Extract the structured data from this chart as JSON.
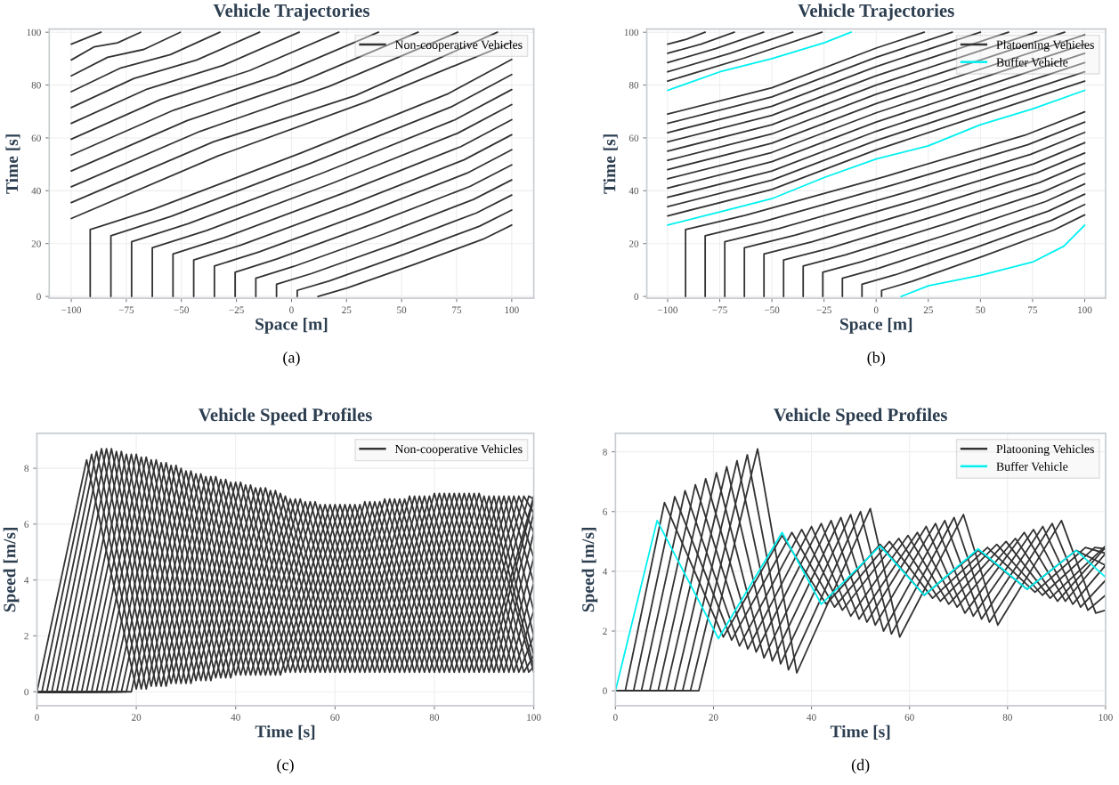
{
  "chart_data": [
    {
      "type": "line",
      "title": "Vehicle Trajectories",
      "xlabel": "Space [m]",
      "ylabel": "Time [s]",
      "xlim": [
        -110,
        110
      ],
      "ylim": [
        -0.7,
        101.2
      ],
      "xticks": [
        {
          "value": -100,
          "label": "−100"
        },
        {
          "value": -75,
          "label": "−75"
        },
        {
          "value": -50,
          "label": "−50"
        },
        {
          "value": -25,
          "label": "−25"
        },
        0,
        25,
        50,
        75,
        100
      ],
      "yticks": [
        0,
        20,
        40,
        60,
        80,
        100
      ],
      "grid": true,
      "legend": "top right",
      "annotations": [
        "(a)"
      ],
      "series": [
        {
          "name": "Non-cooperative Vehicles",
          "color": "#333333",
          "x": [
            12,
            25.2,
            56,
            86.8,
            100
          ],
          "values": [
            0,
            3.2,
            12.2,
            21.6,
            27
          ]
        },
        {
          "color": "#333333",
          "x": [
            2.6,
            2.6,
            17.2,
            51.3,
            85.4,
            100
          ],
          "values": [
            0,
            2.3,
            5.9,
            16,
            26.6,
            32.7
          ]
        },
        {
          "color": "#333333",
          "x": [
            -6.8,
            -6.8,
            9.2,
            46.6,
            84,
            100
          ],
          "values": [
            0,
            4.6,
            8.7,
            19.8,
            31.6,
            38.4
          ]
        },
        {
          "color": "#333333",
          "x": [
            -16.2,
            -16.2,
            1.2,
            41.9,
            82.6,
            100
          ],
          "values": [
            0,
            6.9,
            11.4,
            23.6,
            36.7,
            44.1
          ]
        },
        {
          "color": "#333333",
          "x": [
            -25.6,
            -25.6,
            -6.8,
            37.2,
            81.2,
            100
          ],
          "values": [
            0,
            9.2,
            14.1,
            27.5,
            41.7,
            49.8
          ]
        },
        {
          "color": "#333333",
          "x": [
            -35,
            -35,
            -14.8,
            32.5,
            79.8,
            100
          ],
          "values": [
            0,
            11.5,
            16.8,
            31.3,
            46.7,
            55.5
          ]
        },
        {
          "color": "#333333",
          "x": [
            -44.4,
            -44.4,
            -22.7,
            27.8,
            78.3,
            100
          ],
          "values": [
            0,
            13.8,
            19.5,
            35.1,
            51.7,
            61.2
          ]
        },
        {
          "color": "#333333",
          "x": [
            -53.8,
            -53.8,
            -30.7,
            23.1,
            76.9,
            100
          ],
          "values": [
            0,
            16.1,
            22.2,
            39,
            56.7,
            66.9
          ]
        },
        {
          "color": "#333333",
          "x": [
            -63.2,
            -63.2,
            -38.7,
            18.4,
            75.5,
            100
          ],
          "values": [
            0,
            18.4,
            24.9,
            42.8,
            61.8,
            72.6
          ]
        },
        {
          "color": "#333333",
          "x": [
            -72.6,
            -72.6,
            -46.7,
            13.7,
            74.1,
            100
          ],
          "values": [
            0,
            20.7,
            27.6,
            46.6,
            66.8,
            78.3
          ]
        },
        {
          "color": "#333333",
          "x": [
            -82,
            -82,
            -54.7,
            9,
            72.7,
            100
          ],
          "values": [
            0,
            23,
            30.3,
            50.5,
            71.8,
            84
          ]
        },
        {
          "color": "#333333",
          "x": [
            -91.4,
            -91.4,
            -62.7,
            4.3,
            71.3,
            100
          ],
          "values": [
            0,
            25.3,
            33,
            54.3,
            76.8,
            89.7
          ]
        },
        {
          "color": "#333333",
          "x": [
            -100,
            -33.3,
            33.3,
            100
          ],
          "values": [
            29.5,
            53.2,
            73.4,
            96.2
          ]
        },
        {
          "color": "#333333",
          "x": [
            -100,
            -35.5,
            29,
            93.5
          ],
          "values": [
            35.5,
            58.5,
            76,
            100
          ]
        },
        {
          "color": "#333333",
          "x": [
            -100,
            -41.5,
            17,
            75.5
          ],
          "values": [
            41.5,
            62.5,
            79.5,
            100
          ]
        },
        {
          "color": "#333333",
          "x": [
            -100,
            -47.5,
            5,
            57.5
          ],
          "values": [
            47.5,
            66.5,
            81.5,
            100
          ]
        },
        {
          "color": "#333333",
          "x": [
            -100,
            -53.5,
            -7,
            39.5
          ],
          "values": [
            53.5,
            70.5,
            83.5,
            100
          ]
        },
        {
          "color": "#333333",
          "x": [
            -100,
            -59.5,
            -19,
            21.5
          ],
          "values": [
            59.5,
            74.5,
            85.5,
            100
          ]
        },
        {
          "color": "#333333",
          "x": [
            -100,
            -65.5,
            -31,
            3.5
          ],
          "values": [
            65.5,
            78.5,
            87.5,
            100
          ]
        },
        {
          "color": "#333333",
          "x": [
            -100,
            -71.5,
            -43,
            -14.5
          ],
          "values": [
            71.5,
            82.5,
            89.5,
            100
          ]
        },
        {
          "color": "#333333",
          "x": [
            -100,
            -77.5,
            -55,
            -32.5
          ],
          "values": [
            77.5,
            86.5,
            91.5,
            100
          ]
        },
        {
          "color": "#333333",
          "x": [
            -100,
            -83.5,
            -67,
            -50.5
          ],
          "values": [
            83.5,
            90.5,
            93.5,
            100
          ]
        },
        {
          "color": "#333333",
          "x": [
            -100,
            -89.5,
            -79,
            -68.5
          ],
          "values": [
            89.5,
            94.5,
            96,
            100
          ]
        },
        {
          "color": "#333333",
          "x": [
            -100,
            -86.5
          ],
          "values": [
            95.5,
            100
          ]
        }
      ]
    },
    {
      "type": "line",
      "title": "Vehicle Trajectories",
      "xlabel": "Space [m]",
      "ylabel": "Time [s]",
      "xlim": [
        -110,
        110
      ],
      "ylim": [
        -0.7,
        101.2
      ],
      "xticks": [
        {
          "value": -100,
          "label": "−100"
        },
        {
          "value": -75,
          "label": "−75"
        },
        {
          "value": -50,
          "label": "−50"
        },
        {
          "value": -25,
          "label": "−25"
        },
        0,
        25,
        50,
        75,
        100
      ],
      "yticks": [
        0,
        20,
        40,
        60,
        80,
        100
      ],
      "grid": true,
      "legend": "top right",
      "annotations": [
        "(b)"
      ],
      "series": [
        {
          "name": "Platooning Vehicles",
          "color": "#333333",
          "x": [
            2.6,
            2.6,
            17.2,
            51.3,
            85.4,
            100
          ],
          "values": [
            0,
            2.3,
            5.7,
            15.2,
            25.2,
            30.9
          ]
        },
        {
          "color": "#333333",
          "x": [
            -6.8,
            -6.8,
            9.2,
            46.6,
            84,
            100
          ],
          "values": [
            0,
            4.6,
            8.2,
            18.2,
            28.8,
            34.8
          ]
        },
        {
          "color": "#333333",
          "x": [
            -16.2,
            -16.2,
            1.2,
            41.9,
            82.6,
            100
          ],
          "values": [
            0,
            6.9,
            10.7,
            21.2,
            32.3,
            38.7
          ]
        },
        {
          "color": "#333333",
          "x": [
            -25.6,
            -25.6,
            -6.8,
            37.2,
            81.2,
            100
          ],
          "values": [
            0,
            9.2,
            13.2,
            24.2,
            35.9,
            42.6
          ]
        },
        {
          "color": "#333333",
          "x": [
            -35,
            -35,
            -14.8,
            32.5,
            79.8,
            100
          ],
          "values": [
            0,
            11.5,
            15.7,
            27.3,
            39.5,
            46.5
          ]
        },
        {
          "color": "#333333",
          "x": [
            -44.4,
            -44.4,
            -22.7,
            27.8,
            78.3,
            100
          ],
          "values": [
            0,
            13.8,
            18.2,
            30.3,
            43.1,
            50.4
          ]
        },
        {
          "color": "#333333",
          "x": [
            -53.8,
            -53.8,
            -30.7,
            23.1,
            76.9,
            100
          ],
          "values": [
            0,
            16.1,
            20.7,
            33.3,
            46.7,
            54.3
          ]
        },
        {
          "color": "#333333",
          "x": [
            -63.2,
            -63.2,
            -38.7,
            18.4,
            75.5,
            100
          ],
          "values": [
            0,
            18.4,
            23.2,
            36.3,
            50.2,
            58.2
          ]
        },
        {
          "color": "#333333",
          "x": [
            -72.6,
            -72.6,
            -46.7,
            13.7,
            74.1,
            100
          ],
          "values": [
            0,
            20.7,
            25.7,
            39.3,
            53.8,
            62.1
          ]
        },
        {
          "color": "#333333",
          "x": [
            -82,
            -82,
            -54.7,
            9,
            72.7,
            100
          ],
          "values": [
            0,
            23,
            28.2,
            42.4,
            57.4,
            66
          ]
        },
        {
          "color": "#333333",
          "x": [
            -91.4,
            -91.4,
            -62.7,
            4.3,
            71.3,
            100
          ],
          "values": [
            0,
            25.3,
            30.7,
            45.4,
            61,
            69.9
          ]
        },
        {
          "color": "#333333",
          "x": [
            -100,
            -50,
            0,
            50,
            100
          ],
          "values": [
            30.5,
            40.5,
            55.5,
            68.5,
            81.5
          ]
        },
        {
          "color": "#333333",
          "x": [
            -100,
            -50,
            0,
            50,
            100
          ],
          "values": [
            34,
            44,
            59,
            72,
            85
          ]
        },
        {
          "color": "#333333",
          "x": [
            -100,
            -50,
            0,
            50,
            100
          ],
          "values": [
            37.5,
            47.5,
            62.5,
            75.5,
            88.5
          ]
        },
        {
          "color": "#333333",
          "x": [
            -100,
            -50,
            0,
            50,
            100
          ],
          "values": [
            41,
            51,
            66,
            79,
            92
          ]
        },
        {
          "color": "#333333",
          "x": [
            -100,
            -50,
            0,
            50,
            100
          ],
          "values": [
            44.5,
            54.5,
            69.5,
            82.5,
            95.5
          ]
        },
        {
          "color": "#333333",
          "x": [
            -100,
            -50,
            0,
            50,
            100
          ],
          "values": [
            48,
            58,
            73,
            86,
            99
          ]
        },
        {
          "color": "#333333",
          "x": [
            -100,
            -50,
            0,
            50,
            90.4
          ],
          "values": [
            51.5,
            61.5,
            76.5,
            89.5,
            100
          ]
        },
        {
          "color": "#333333",
          "x": [
            -100,
            -50,
            0,
            50,
            76.9
          ],
          "values": [
            55,
            65,
            80,
            93,
            100
          ]
        },
        {
          "color": "#333333",
          "x": [
            -100,
            -50,
            0,
            50,
            63.5
          ],
          "values": [
            58.5,
            68.5,
            83.5,
            96.5,
            100
          ]
        },
        {
          "color": "#333333",
          "x": [
            -100,
            -50,
            0,
            50
          ],
          "values": [
            62,
            72,
            87,
            100
          ]
        },
        {
          "color": "#333333",
          "x": [
            -100,
            -50,
            0,
            36.5
          ],
          "values": [
            65.5,
            75.5,
            90.5,
            100
          ]
        },
        {
          "color": "#333333",
          "x": [
            -100,
            -50,
            0,
            23.1
          ],
          "values": [
            69,
            79,
            94,
            100
          ]
        },
        {
          "color": "#333333",
          "x": [
            -100,
            -63,
            -26
          ],
          "values": [
            81.5,
            90.3,
            100
          ]
        },
        {
          "color": "#333333",
          "x": [
            -100,
            -70,
            -40
          ],
          "values": [
            85,
            92,
            100
          ]
        },
        {
          "color": "#333333",
          "x": [
            -100,
            -77,
            -54
          ],
          "values": [
            88.5,
            93.8,
            100
          ]
        },
        {
          "color": "#333333",
          "x": [
            -100,
            -84,
            -68
          ],
          "values": [
            92,
            95.5,
            100
          ]
        },
        {
          "color": "#333333",
          "x": [
            -100,
            -91,
            -82
          ],
          "values": [
            95.5,
            97.3,
            100
          ]
        },
        {
          "name": "Buffer Vehicle",
          "color": "#00f0f0",
          "x": [
            12,
            25,
            50,
            75,
            90,
            100
          ],
          "values": [
            0,
            4,
            8,
            13,
            19,
            27
          ]
        },
        {
          "color": "#00f0f0",
          "x": [
            -100,
            -75,
            -50,
            -25,
            0,
            25,
            50,
            75,
            100
          ],
          "values": [
            27,
            32,
            37,
            45,
            52,
            57,
            65,
            71,
            78
          ]
        },
        {
          "color": "#00f0f0",
          "x": [
            -100,
            -75,
            -50,
            -25,
            -12
          ],
          "values": [
            78,
            85,
            90,
            96,
            100
          ]
        }
      ]
    },
    {
      "type": "line",
      "title": "Vehicle Speed Profiles",
      "xlabel": "Time [s]",
      "ylabel": "Speed [m/s]",
      "xlim": [
        0,
        100
      ],
      "ylim": [
        -0.5,
        9.25
      ],
      "xticks": [
        0,
        20,
        40,
        60,
        80,
        100
      ],
      "yticks": [
        0,
        2,
        4,
        6,
        8
      ],
      "grid": true,
      "legend": "top right",
      "annotations": [
        "(c)"
      ],
      "series": [
        {
          "name": "Non-cooperative Vehicles",
          "color": "#333333",
          "x": [
            0,
            10,
            20,
            30,
            40,
            50,
            60,
            70,
            80,
            90,
            100
          ],
          "values": [
            0,
            8.3,
            0.1,
            7.9,
            0.6,
            7.0,
            0.7,
            6.9,
            0.7,
            7.0,
            0.7
          ]
        },
        {
          "color": "#333333",
          "x": [
            0,
            1,
            11,
            21,
            31,
            41,
            51,
            61,
            71,
            81,
            91,
            100
          ],
          "values": [
            0,
            0,
            8.5,
            0.1,
            7.9,
            0.6,
            6.9,
            0.7,
            6.9,
            0.7,
            7.0,
            0.9
          ]
        },
        {
          "color": "#333333",
          "x": [
            0,
            2,
            12,
            22,
            32,
            42,
            52,
            62,
            72,
            82,
            92,
            100
          ],
          "values": [
            0,
            0,
            8.6,
            0.1,
            7.8,
            0.6,
            6.9,
            0.7,
            6.9,
            0.7,
            7.0,
            1.3
          ]
        },
        {
          "color": "#333333",
          "x": [
            0,
            3,
            13,
            23,
            33,
            43,
            53,
            63,
            73,
            83,
            93,
            100
          ],
          "values": [
            0,
            0,
            8.7,
            0.2,
            7.8,
            0.6,
            6.9,
            0.7,
            6.9,
            0.7,
            7.0,
            2.0
          ]
        },
        {
          "color": "#333333",
          "x": [
            0,
            4,
            14,
            24,
            34,
            44,
            54,
            64,
            74,
            84,
            94,
            100
          ],
          "values": [
            0,
            0,
            8.7,
            0.2,
            7.7,
            0.6,
            6.8,
            0.7,
            6.9,
            0.7,
            7.0,
            2.9
          ]
        },
        {
          "color": "#333333",
          "x": [
            0,
            5,
            15,
            25,
            35,
            45,
            55,
            65,
            75,
            85,
            95,
            100
          ],
          "values": [
            0,
            0,
            8.7,
            0.2,
            7.7,
            0.6,
            6.8,
            0.7,
            7.0,
            0.7,
            7.0,
            3.9
          ]
        },
        {
          "color": "#333333",
          "x": [
            0,
            6,
            16,
            26,
            36,
            46,
            56,
            66,
            76,
            86,
            96,
            100
          ],
          "values": [
            0,
            0,
            8.6,
            0.2,
            7.7,
            0.6,
            6.8,
            0.7,
            7.0,
            0.7,
            7.0,
            4.8
          ]
        },
        {
          "color": "#333333",
          "x": [
            0,
            7,
            17,
            27,
            37,
            47,
            57,
            67,
            77,
            87,
            97,
            100
          ],
          "values": [
            0,
            0,
            8.6,
            0.3,
            7.6,
            0.6,
            6.7,
            0.7,
            7.0,
            0.7,
            7.0,
            5.7
          ]
        },
        {
          "color": "#333333",
          "x": [
            0,
            8,
            18,
            28,
            38,
            48,
            58,
            68,
            78,
            88,
            98,
            100
          ],
          "values": [
            0,
            0,
            8.5,
            0.3,
            7.6,
            0.6,
            6.7,
            0.7,
            7.0,
            0.7,
            7.0,
            6.4
          ]
        },
        {
          "color": "#333333",
          "x": [
            0,
            9,
            19,
            29,
            39,
            49,
            59,
            69,
            79,
            89,
            99,
            100
          ],
          "values": [
            0,
            0,
            8.5,
            0.3,
            7.5,
            0.6,
            6.7,
            0.7,
            7.0,
            0.7,
            7.0,
            6.9
          ]
        },
        {
          "color": "#333333",
          "x": [
            0,
            10,
            20,
            30,
            40,
            50,
            60,
            70,
            80,
            90,
            100
          ],
          "values": [
            0,
            0,
            8.5,
            0.3,
            7.5,
            0.7,
            6.7,
            0.7,
            7.1,
            0.7,
            7.0
          ]
        },
        {
          "color": "#333333",
          "x": [
            0,
            11,
            21,
            31,
            41,
            51,
            61,
            71,
            81,
            91,
            100
          ],
          "values": [
            0,
            0,
            8.4,
            0.3,
            7.5,
            0.7,
            6.7,
            0.7,
            7.1,
            0.7,
            6.9
          ]
        },
        {
          "color": "#333333",
          "x": [
            0,
            12,
            22,
            32,
            42,
            52,
            62,
            72,
            82,
            92,
            100
          ],
          "values": [
            0,
            0,
            8.4,
            0.4,
            7.4,
            0.7,
            6.7,
            0.7,
            7.1,
            0.7,
            6.4
          ]
        },
        {
          "color": "#333333",
          "x": [
            0,
            13,
            23,
            33,
            43,
            53,
            63,
            73,
            83,
            93,
            100
          ],
          "values": [
            0,
            0,
            8.3,
            0.4,
            7.4,
            0.7,
            6.7,
            0.7,
            7.1,
            0.7,
            5.7
          ]
        },
        {
          "color": "#333333",
          "x": [
            0,
            14,
            24,
            34,
            44,
            54,
            64,
            74,
            84,
            94,
            100
          ],
          "values": [
            0,
            0,
            8.3,
            0.4,
            7.3,
            0.7,
            6.7,
            0.7,
            7.1,
            0.7,
            4.8
          ]
        },
        {
          "color": "#333333",
          "x": [
            0,
            15,
            25,
            35,
            45,
            55,
            65,
            75,
            85,
            95,
            100
          ],
          "values": [
            0,
            0,
            8.2,
            0.4,
            7.3,
            0.7,
            6.7,
            0.7,
            7.1,
            0.7,
            3.9
          ]
        },
        {
          "color": "#333333",
          "x": [
            0,
            16,
            26,
            36,
            46,
            56,
            66,
            76,
            86,
            96,
            100
          ],
          "values": [
            0,
            0,
            8.2,
            0.5,
            7.3,
            0.7,
            6.8,
            0.7,
            7.1,
            0.7,
            2.9
          ]
        },
        {
          "color": "#333333",
          "x": [
            0,
            17,
            27,
            37,
            47,
            57,
            67,
            77,
            87,
            97,
            100
          ],
          "values": [
            0,
            0,
            8.1,
            0.5,
            7.2,
            0.7,
            6.8,
            0.7,
            7.1,
            0.7,
            2.0
          ]
        },
        {
          "color": "#333333",
          "x": [
            0,
            18,
            28,
            38,
            48,
            58,
            68,
            78,
            88,
            98,
            100
          ],
          "values": [
            0,
            0,
            8.1,
            0.5,
            7.2,
            0.7,
            6.8,
            0.7,
            7.1,
            0.7,
            1.3
          ]
        },
        {
          "color": "#333333",
          "x": [
            0,
            19,
            29,
            39,
            49,
            59,
            69,
            79,
            89,
            99,
            100
          ],
          "values": [
            0,
            0,
            8.0,
            0.5,
            7.1,
            0.7,
            6.8,
            0.7,
            7.1,
            0.7,
            0.9
          ]
        }
      ]
    },
    {
      "type": "line",
      "title": "Vehicle Speed Profiles",
      "xlabel": "Time [s]",
      "ylabel": "Speed [m/s]",
      "xlim": [
        0,
        100
      ],
      "ylim": [
        -0.5,
        8.62
      ],
      "xticks": [
        0,
        20,
        40,
        60,
        80,
        100
      ],
      "yticks": [
        0,
        2,
        4,
        6,
        8
      ],
      "grid": true,
      "legend": "top right",
      "annotations": [
        "(d)"
      ],
      "series": [
        {
          "name": "Platooning Vehicles",
          "color": "#333333",
          "x": [
            0,
            2,
            10,
            22,
            34,
            43,
            54,
            63,
            74,
            84,
            94,
            100
          ],
          "values": [
            0,
            0,
            6.3,
            1.8,
            5.2,
            2.9,
            4.9,
            3.2,
            4.7,
            3.4,
            4.7,
            4.2
          ]
        },
        {
          "color": "#333333",
          "x": [
            0,
            3.7,
            12.1,
            23.7,
            36,
            44.7,
            55.9,
            64.7,
            75.9,
            85.6,
            95.9,
            100
          ],
          "values": [
            0,
            0,
            6.5,
            1.7,
            5.3,
            2.8,
            5.0,
            3.1,
            4.8,
            3.3,
            4.8,
            4.6
          ]
        },
        {
          "color": "#333333",
          "x": [
            0,
            5.3,
            14.2,
            25.3,
            38,
            46.3,
            57.8,
            66.3,
            77.8,
            87.1,
            97.8,
            100
          ],
          "values": [
            0,
            0,
            6.7,
            1.5,
            5.4,
            2.7,
            5.1,
            3.0,
            4.9,
            3.2,
            4.8,
            4.75
          ]
        },
        {
          "color": "#333333",
          "x": [
            0,
            7,
            16.3,
            27,
            40,
            48,
            59.7,
            68,
            79.7,
            88.7,
            100
          ],
          "values": [
            0,
            0,
            6.9,
            1.4,
            5.5,
            2.5,
            5.2,
            2.9,
            5.0,
            3.1,
            4.85
          ]
        },
        {
          "color": "#333333",
          "x": [
            0,
            8.7,
            18.4,
            28.7,
            42,
            49.7,
            61.6,
            69.7,
            81.6,
            90.2,
            100
          ],
          "values": [
            0,
            0,
            7.1,
            1.3,
            5.6,
            2.4,
            5.3,
            2.8,
            5.1,
            3.0,
            4.8
          ]
        },
        {
          "color": "#333333",
          "x": [
            0,
            10.3,
            20.6,
            30.3,
            44,
            51.3,
            63.4,
            71.3,
            83.4,
            91.8,
            100
          ],
          "values": [
            0,
            0,
            7.3,
            1.1,
            5.7,
            2.3,
            5.5,
            2.6,
            5.3,
            3.0,
            4.6
          ]
        },
        {
          "color": "#333333",
          "x": [
            0,
            12,
            22.7,
            32,
            46,
            53,
            65.3,
            73,
            85.3,
            93.3,
            100
          ],
          "values": [
            0,
            0,
            7.5,
            1.0,
            5.8,
            2.2,
            5.6,
            2.5,
            5.4,
            2.9,
            4.2
          ]
        },
        {
          "color": "#333333",
          "x": [
            0,
            13.7,
            24.8,
            33.7,
            48,
            54.7,
            67.2,
            74.7,
            87.2,
            94.9,
            100
          ],
          "values": [
            0,
            0,
            7.7,
            0.9,
            5.9,
            2.0,
            5.7,
            2.4,
            5.5,
            2.8,
            3.7
          ]
        },
        {
          "color": "#333333",
          "x": [
            0,
            15.3,
            26.9,
            35.3,
            50,
            56.3,
            69.1,
            76.3,
            89.1,
            96.4,
            100
          ],
          "values": [
            0,
            0,
            7.9,
            0.7,
            6.0,
            1.9,
            5.8,
            2.3,
            5.6,
            2.7,
            3.2
          ]
        },
        {
          "color": "#333333",
          "x": [
            0,
            17,
            29,
            37,
            52,
            58,
            71,
            78,
            91,
            98,
            100
          ],
          "values": [
            0,
            0,
            8.1,
            0.6,
            6.1,
            1.8,
            5.9,
            2.2,
            5.7,
            2.6,
            2.7
          ]
        },
        {
          "name": "Buffer Vehicle",
          "color": "#00f0f0",
          "x": [
            0,
            8.5,
            21,
            34,
            42,
            54,
            63,
            74,
            84,
            94,
            100
          ],
          "values": [
            0,
            5.7,
            1.75,
            5.3,
            2.9,
            4.85,
            3.2,
            4.75,
            3.4,
            4.7,
            3.8
          ]
        }
      ]
    }
  ]
}
